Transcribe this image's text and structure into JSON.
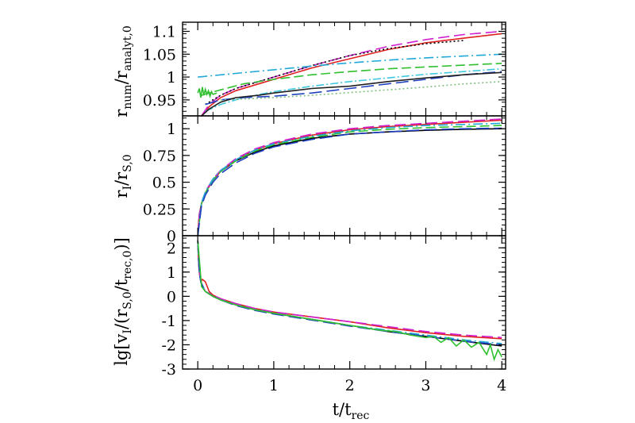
{
  "chart_data": [
    {
      "type": "line",
      "panel": "top",
      "ylabel": {
        "main": "r",
        "sub_num": "num",
        "sep": "/r",
        "sub_den": "analyt,0"
      },
      "xlim": [
        -0.2,
        4.05
      ],
      "ylim": [
        0.915,
        1.12
      ],
      "yticks": [
        {
          "v": 0.95,
          "label": "0.95"
        },
        {
          "v": 1.0,
          "label": "1"
        },
        {
          "v": 1.05,
          "label": "1.05"
        },
        {
          "v": 1.1,
          "label": "1.1"
        }
      ],
      "series": [
        {
          "color": "#e02020",
          "dash": "",
          "x": [
            0.05,
            0.15,
            0.3,
            0.5,
            0.8,
            1.0,
            1.5,
            2.0,
            2.5,
            3.0,
            3.5,
            4.0
          ],
          "y": [
            0.915,
            0.935,
            0.955,
            0.97,
            0.985,
            0.995,
            1.02,
            1.04,
            1.06,
            1.075,
            1.085,
            1.095
          ]
        },
        {
          "color": "#d020d0",
          "dash": "14,6",
          "x": [
            0.05,
            0.15,
            0.3,
            0.5,
            0.8,
            1.0,
            1.5,
            2.0,
            2.5,
            3.0,
            3.5,
            4.0
          ],
          "y": [
            0.915,
            0.94,
            0.96,
            0.975,
            0.99,
            1.0,
            1.025,
            1.047,
            1.067,
            1.082,
            1.093,
            1.1
          ]
        },
        {
          "color": "#000000",
          "dash": "2,3",
          "x": [
            0.1,
            0.3,
            0.5,
            1.0,
            1.5,
            2.0,
            2.5,
            3.0,
            3.5
          ],
          "y": [
            0.94,
            0.96,
            0.975,
            1.0,
            1.025,
            1.047,
            1.062,
            1.073,
            1.08
          ]
        },
        {
          "color": "#20a8d8",
          "dash": "12,4,2,4",
          "x": [
            0.0,
            0.5,
            1.0,
            1.5,
            2.0,
            2.5,
            3.0,
            3.5,
            4.0
          ],
          "y": [
            1.0,
            1.008,
            1.016,
            1.024,
            1.031,
            1.037,
            1.042,
            1.046,
            1.05
          ]
        },
        {
          "color": "#30c030",
          "dash": "12,5",
          "x": [
            0.05,
            0.3,
            0.6,
            1.0,
            1.5,
            2.0,
            2.5,
            3.0,
            3.5,
            4.0
          ],
          "y": [
            0.96,
            0.972,
            0.985,
            0.995,
            1.005,
            1.012,
            1.018,
            1.022,
            1.026,
            1.03
          ]
        },
        {
          "color": "#40c8e0",
          "dash": "10,3,2,3",
          "x": [
            0.1,
            0.3,
            0.6,
            1.0,
            1.5,
            2.0,
            2.5,
            3.0,
            3.5,
            4.0
          ],
          "y": [
            0.925,
            0.94,
            0.955,
            0.968,
            0.98,
            0.99,
            0.998,
            1.006,
            1.012,
            1.018
          ]
        },
        {
          "color": "#2040c0",
          "dash": "16,6",
          "x": [
            0.1,
            0.3,
            0.6,
            1.0,
            1.5,
            2.0,
            2.5,
            3.0,
            3.5,
            4.0
          ],
          "y": [
            0.94,
            0.95,
            0.955,
            0.958,
            0.965,
            0.975,
            0.985,
            0.995,
            1.005,
            1.012
          ]
        },
        {
          "color": "#80c080",
          "dash": "2,3",
          "x": [
            0.3,
            0.6,
            1.0,
            1.5,
            2.0,
            2.5,
            3.0,
            3.5,
            4.0
          ],
          "y": [
            0.95,
            0.952,
            0.955,
            0.96,
            0.966,
            0.972,
            0.978,
            0.985,
            0.99
          ]
        },
        {
          "color": "#202020",
          "dash": "",
          "x": [
            0.05,
            0.15,
            0.3,
            0.5,
            0.8,
            1.0,
            1.5,
            2.0,
            2.5,
            3.0,
            3.5,
            4.0
          ],
          "y": [
            0.915,
            0.93,
            0.945,
            0.955,
            0.96,
            0.965,
            0.975,
            0.98,
            0.99,
            0.998,
            1.005,
            1.01
          ]
        },
        {
          "color": "#30c030",
          "dash": "",
          "x": [
            0.0,
            0.02,
            0.04,
            0.06,
            0.08,
            0.1,
            0.12,
            0.14,
            0.16,
            0.18,
            0.2,
            0.25
          ],
          "y": [
            0.965,
            0.975,
            0.955,
            0.978,
            0.96,
            0.973,
            0.962,
            0.97,
            0.958,
            0.968,
            0.962,
            0.965
          ]
        }
      ]
    },
    {
      "type": "line",
      "panel": "middle",
      "ylabel": {
        "main": "r",
        "sub_num": "I",
        "sep": "/r",
        "sub_den": "S,0"
      },
      "xlim": [
        -0.2,
        4.05
      ],
      "ylim": [
        0,
        1.12
      ],
      "yticks": [
        {
          "v": 0,
          "label": "0"
        },
        {
          "v": 0.25,
          "label": "0.25"
        },
        {
          "v": 0.5,
          "label": "0.5"
        },
        {
          "v": 0.75,
          "label": "0.75"
        },
        {
          "v": 1.0,
          "label": "1"
        }
      ],
      "series": [
        {
          "color": "#000000",
          "dash": "",
          "x": [
            0,
            0.02,
            0.05,
            0.1,
            0.2,
            0.3,
            0.5,
            0.75,
            1.0,
            1.5,
            2.0,
            2.5,
            3.0,
            3.5,
            4.0
          ],
          "y": [
            0,
            0.2,
            0.3,
            0.4,
            0.52,
            0.6,
            0.7,
            0.78,
            0.84,
            0.91,
            0.95,
            0.97,
            0.985,
            0.995,
            1.0
          ]
        },
        {
          "color": "#e02020",
          "dash": "",
          "x": [
            0,
            0.02,
            0.05,
            0.1,
            0.2,
            0.3,
            0.5,
            0.75,
            1.0,
            1.5,
            2.0,
            2.5,
            3.0,
            3.5,
            4.0
          ],
          "y": [
            0,
            0.19,
            0.3,
            0.4,
            0.52,
            0.6,
            0.71,
            0.8,
            0.86,
            0.94,
            0.99,
            1.02,
            1.04,
            1.06,
            1.08
          ]
        },
        {
          "color": "#d020d0",
          "dash": "14,6",
          "x": [
            0,
            0.02,
            0.05,
            0.1,
            0.2,
            0.3,
            0.5,
            0.75,
            1.0,
            1.5,
            2.0,
            2.5,
            3.0,
            3.5,
            4.0
          ],
          "y": [
            0,
            0.19,
            0.3,
            0.41,
            0.53,
            0.61,
            0.72,
            0.81,
            0.87,
            0.95,
            1.0,
            1.03,
            1.05,
            1.07,
            1.09
          ]
        },
        {
          "color": "#30c030",
          "dash": "12,5",
          "x": [
            0,
            0.05,
            0.1,
            0.2,
            0.3,
            0.5,
            0.75,
            1.0,
            1.5,
            2.0,
            2.5,
            3.0,
            3.5,
            4.0
          ],
          "y": [
            0,
            0.3,
            0.4,
            0.52,
            0.6,
            0.7,
            0.79,
            0.85,
            0.92,
            0.97,
            0.995,
            1.01,
            1.02,
            1.03
          ]
        },
        {
          "color": "#20a8d8",
          "dash": "12,4,2,4",
          "x": [
            0,
            0.05,
            0.1,
            0.2,
            0.3,
            0.5,
            0.75,
            1.0,
            1.5,
            2.0,
            2.5,
            3.0,
            3.5,
            4.0
          ],
          "y": [
            0,
            0.31,
            0.41,
            0.53,
            0.61,
            0.71,
            0.8,
            0.86,
            0.93,
            0.98,
            1.01,
            1.03,
            1.04,
            1.05
          ]
        },
        {
          "color": "#2040c0",
          "dash": "16,6",
          "x": [
            0,
            0.05,
            0.1,
            0.2,
            0.3,
            0.5,
            0.75,
            1.0,
            1.5,
            2.0,
            2.5,
            3.0,
            3.5,
            4.0
          ],
          "y": [
            0,
            0.28,
            0.38,
            0.5,
            0.58,
            0.68,
            0.77,
            0.83,
            0.9,
            0.95,
            0.97,
            0.99,
            1.0,
            1.005
          ]
        }
      ]
    },
    {
      "type": "line",
      "panel": "bottom",
      "ylabel": {
        "pre": "lg[v",
        "sub_a": "I",
        "mid": "/(r",
        "sub_b": "S,0",
        "mid2": "/t",
        "sub_c": "rec,0",
        "post": ")]"
      },
      "xlabel": {
        "main": "t/t",
        "sub": "rec"
      },
      "xlim": [
        -0.2,
        4.05
      ],
      "ylim": [
        -3,
        2.5
      ],
      "xticks": [
        {
          "v": 0,
          "label": "0"
        },
        {
          "v": 1,
          "label": "1"
        },
        {
          "v": 2,
          "label": "2"
        },
        {
          "v": 3,
          "label": "3"
        },
        {
          "v": 4,
          "label": "4"
        }
      ],
      "yticks": [
        {
          "v": -3,
          "label": "-3"
        },
        {
          "v": -2,
          "label": "-2"
        },
        {
          "v": -1,
          "label": "-1"
        },
        {
          "v": 0,
          "label": "0"
        },
        {
          "v": 1,
          "label": "1"
        },
        {
          "v": 2,
          "label": "2"
        }
      ],
      "series": [
        {
          "color": "#000000",
          "dash": "",
          "x": [
            0,
            0.01,
            0.02,
            0.04,
            0.06,
            0.1,
            0.2,
            0.3,
            0.5,
            0.75,
            1.0,
            1.5,
            2.0,
            2.5,
            3.0,
            3.5,
            4.0
          ],
          "y": [
            2.3,
            1.5,
            1.0,
            0.6,
            0.4,
            0.2,
            0.0,
            -0.15,
            -0.35,
            -0.55,
            -0.7,
            -0.95,
            -1.2,
            -1.45,
            -1.65,
            -1.85,
            -2.05
          ]
        },
        {
          "color": "#e02020",
          "dash": "",
          "x": [
            0,
            0.01,
            0.02,
            0.04,
            0.06,
            0.1,
            0.15,
            0.2,
            0.3,
            0.5,
            0.75,
            1.0,
            1.5,
            2.0,
            2.5,
            3.0,
            3.5,
            4.0
          ],
          "y": [
            2.3,
            1.5,
            1.0,
            0.6,
            0.7,
            0.6,
            0.2,
            0.05,
            -0.1,
            -0.3,
            -0.5,
            -0.65,
            -0.85,
            -1.05,
            -1.3,
            -1.5,
            -1.65,
            -1.75
          ]
        },
        {
          "color": "#d020d0",
          "dash": "14,6",
          "x": [
            0,
            0.02,
            0.04,
            0.1,
            0.2,
            0.3,
            0.5,
            0.75,
            1.0,
            1.5,
            2.0,
            2.5,
            3.0,
            3.5,
            4.0
          ],
          "y": [
            2.3,
            1.0,
            0.6,
            0.2,
            0.05,
            -0.1,
            -0.3,
            -0.5,
            -0.65,
            -0.85,
            -1.05,
            -1.25,
            -1.45,
            -1.6,
            -1.7
          ]
        },
        {
          "color": "#20a8d8",
          "dash": "12,4,2,4",
          "x": [
            0,
            0.02,
            0.04,
            0.1,
            0.2,
            0.3,
            0.5,
            0.75,
            1.0,
            1.5,
            2.0,
            2.5,
            3.0,
            3.5,
            4.0
          ],
          "y": [
            2.3,
            1.0,
            0.6,
            0.2,
            0.0,
            -0.15,
            -0.35,
            -0.55,
            -0.7,
            -0.95,
            -1.2,
            -1.4,
            -1.6,
            -1.8,
            -1.95
          ]
        },
        {
          "color": "#2040c0",
          "dash": "16,6",
          "x": [
            0,
            0.02,
            0.04,
            0.1,
            0.2,
            0.3,
            0.5,
            0.75,
            1.0,
            1.5,
            2.0,
            2.5,
            3.0,
            3.5,
            4.0
          ],
          "y": [
            2.3,
            1.0,
            0.6,
            0.2,
            0.0,
            -0.15,
            -0.38,
            -0.58,
            -0.73,
            -0.98,
            -1.23,
            -1.45,
            -1.65,
            -1.85,
            -2.0
          ]
        },
        {
          "color": "#30c030",
          "dash": "",
          "x": [
            0,
            0.05,
            0.1,
            0.2,
            0.3,
            0.5,
            0.75,
            1.0,
            1.5,
            2.0,
            2.2,
            2.4,
            2.6,
            2.8,
            3.0,
            3.1,
            3.2,
            3.3,
            3.4,
            3.5,
            3.6,
            3.7,
            3.8,
            3.85,
            3.9,
            3.95,
            4.0
          ],
          "y": [
            2.3,
            0.4,
            0.2,
            0.0,
            -0.15,
            -0.35,
            -0.55,
            -0.7,
            -0.95,
            -1.2,
            -1.3,
            -1.4,
            -1.45,
            -1.6,
            -1.7,
            -1.65,
            -1.9,
            -1.7,
            -2.05,
            -1.8,
            -2.1,
            -1.9,
            -2.4,
            -2.0,
            -2.6,
            -2.2,
            -2.5
          ]
        }
      ]
    }
  ]
}
